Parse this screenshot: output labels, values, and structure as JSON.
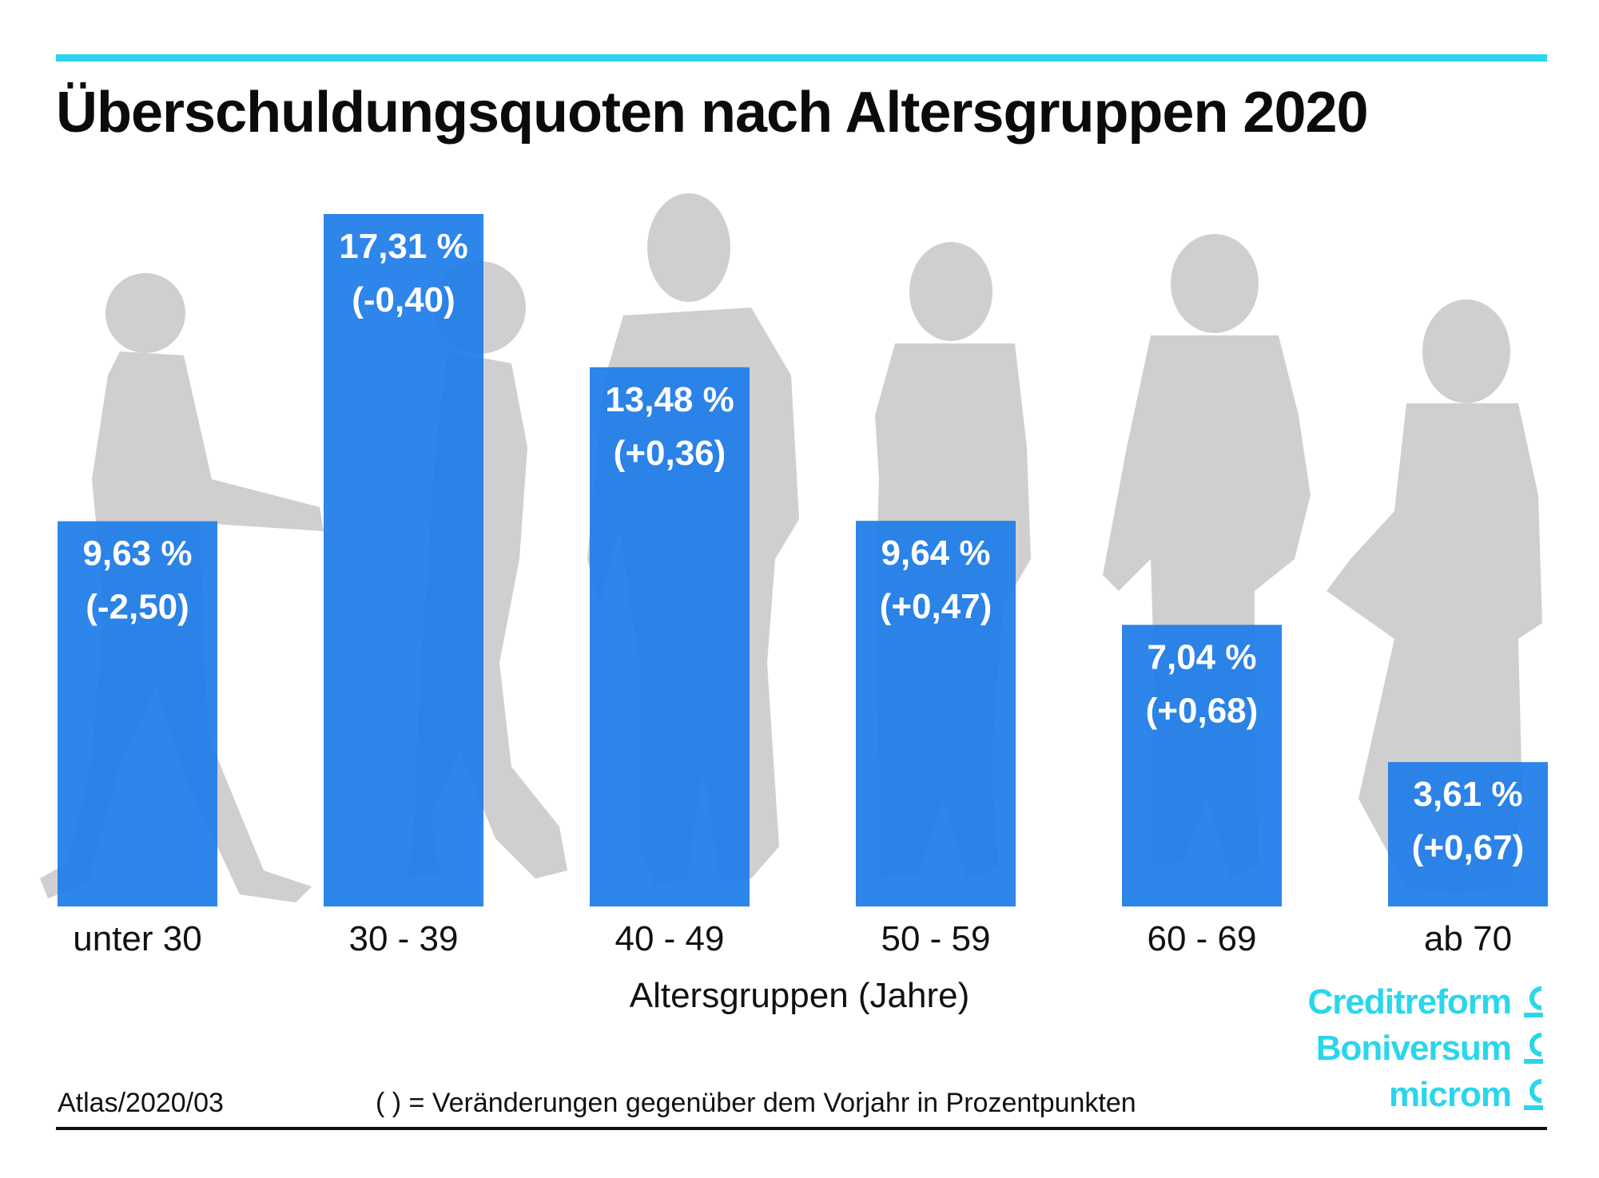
{
  "title": "Überschuldungsquoten nach Altersgruppen 2020",
  "chart_data": {
    "type": "bar",
    "categories": [
      "unter 30",
      "30 - 39",
      "40 - 49",
      "50 - 59",
      "60 - 69",
      "ab 70"
    ],
    "values": [
      9.63,
      17.31,
      13.48,
      9.64,
      7.04,
      3.61
    ],
    "changes": [
      -2.5,
      -0.4,
      0.36,
      0.47,
      0.68,
      0.67
    ],
    "value_labels": [
      "9,63 %",
      "17,31 %",
      "13,48 %",
      "9,64 %",
      "7,04 %",
      "3,61 %"
    ],
    "change_labels": [
      "(-2,50)",
      "(-0,40)",
      "(+0,36)",
      "(+0,47)",
      "(+0,68)",
      "(+0,67)"
    ],
    "xlabel": "Altersgruppen (Jahre)",
    "ylabel": "",
    "ylim": [
      0,
      17.31
    ],
    "bar_color": "#1e7ce8",
    "grid": false,
    "legend": "none"
  },
  "footer": {
    "source": "Atlas/2020/03",
    "note": "( ) =  Veränderungen gegenüber dem Vorjahr in Prozentpunkten"
  },
  "brands": [
    "Creditreform",
    "Boniversum",
    "microm"
  ],
  "colors": {
    "accent": "#2ad6ec",
    "silhouette": "#cfcfcf"
  }
}
